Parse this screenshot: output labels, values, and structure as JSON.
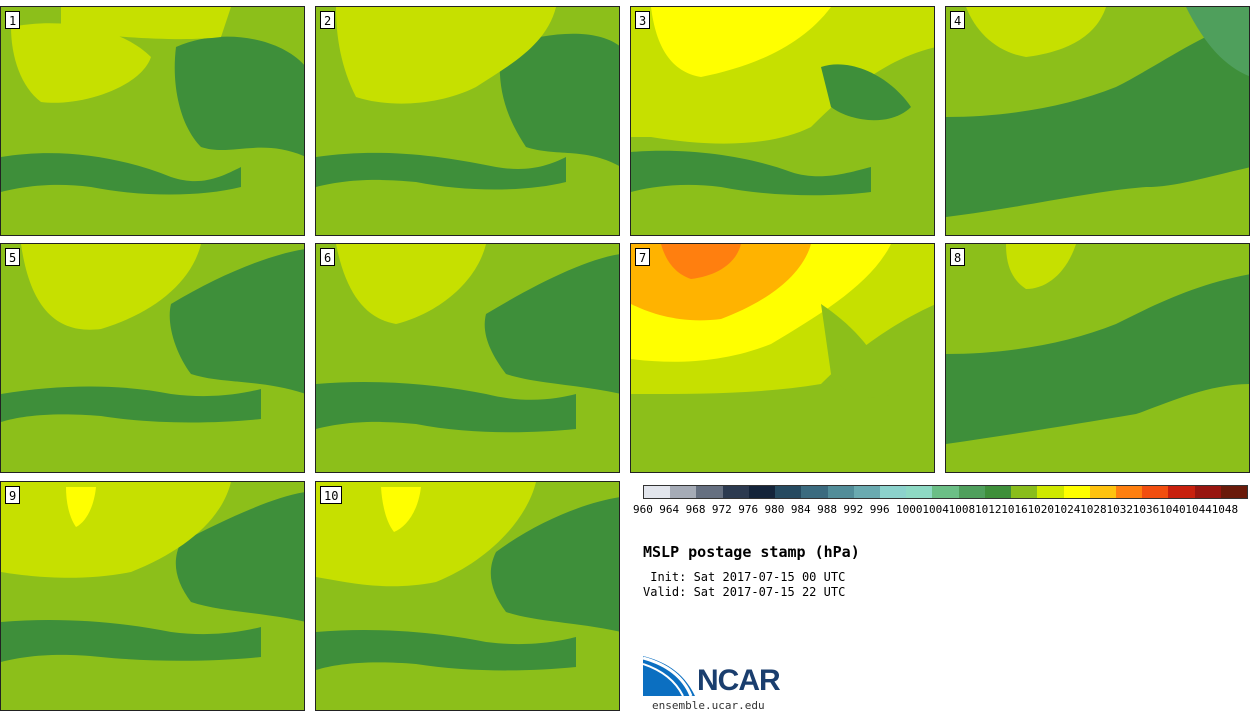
{
  "panels": [
    {
      "label": "1"
    },
    {
      "label": "2"
    },
    {
      "label": "3"
    },
    {
      "label": "4"
    },
    {
      "label": "5"
    },
    {
      "label": "6"
    },
    {
      "label": "7"
    },
    {
      "label": "8"
    },
    {
      "label": "9"
    },
    {
      "label": "10"
    }
  ],
  "colorbar": {
    "ticks": [
      "960",
      "964",
      "968",
      "972",
      "976",
      "980",
      "984",
      "988",
      "992",
      "996",
      "1000",
      "1004",
      "1008",
      "1012",
      "1016",
      "1020",
      "1024",
      "1028",
      "1032",
      "1036",
      "1040",
      "1044",
      "1048"
    ],
    "colors": [
      "#e2e5ec",
      "#a5abb6",
      "#656f80",
      "#2c3a50",
      "#14243a",
      "#264a60",
      "#3b6b7f",
      "#528d99",
      "#6aaab0",
      "#8cd2cc",
      "#8ed9c4",
      "#6bbf86",
      "#4f9f5c",
      "#3e8f3a",
      "#89bd1c",
      "#cfe800",
      "#ffff00",
      "#ffc20e",
      "#ff7f0f",
      "#f24e0f",
      "#c8200d",
      "#98150f",
      "#6a1a0a"
    ]
  },
  "title": "MSLP postage stamp (hPa)",
  "init_line": " Init: Sat 2017-07-15 00 UTC",
  "valid_line": "Valid: Sat 2017-07-15 22 UTC",
  "logo_text": "NCAR",
  "site": "ensemble.ucar.edu",
  "field_colors": {
    "base": "#8cbf1a",
    "dark": "#3e8f3a",
    "light": "#c6e000",
    "yellow": "#ffff00",
    "orange": "#ffb300",
    "deep_orange": "#ff7f0f"
  }
}
